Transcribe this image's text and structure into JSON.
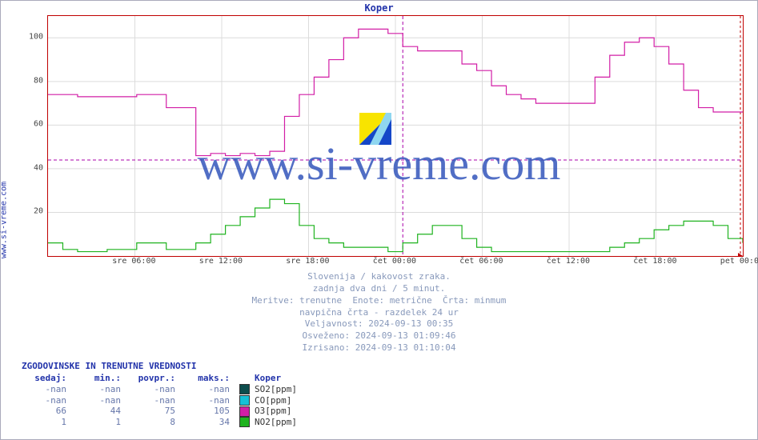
{
  "title": "Koper",
  "side_label": "www.si-vreme.com",
  "watermark": "www.si-vreme.com",
  "chart": {
    "type": "line",
    "background_color": "#ffffff",
    "frame_color": "#c00000",
    "grid_color": "#dcdcdc",
    "ylim": [
      0,
      110
    ],
    "yticks": [
      20,
      40,
      60,
      80,
      100
    ],
    "xticks": [
      "sre 06:00",
      "sre 12:00",
      "sre 18:00",
      "čet 00:00",
      "čet 06:00",
      "čet 12:00",
      "čet 18:00",
      "pet 00:00"
    ],
    "n_points": 48,
    "divider_at": 24,
    "divider_color": "#aa00aa",
    "hline_value": 44,
    "hline_color": "#aa00aa",
    "series": [
      {
        "name": "O3",
        "color": "#d21ea6",
        "line_width": 1.2,
        "data": [
          74,
          74,
          73,
          73,
          73,
          73,
          74,
          74,
          68,
          68,
          46,
          47,
          46,
          47,
          46,
          48,
          64,
          74,
          82,
          90,
          100,
          104,
          104,
          102,
          96,
          94,
          94,
          94,
          88,
          85,
          78,
          74,
          72,
          70,
          70,
          70,
          70,
          82,
          92,
          98,
          100,
          96,
          88,
          76,
          68,
          66,
          66,
          66
        ]
      },
      {
        "name": "NO2",
        "color": "#1fb31f",
        "line_width": 1.2,
        "data": [
          6,
          3,
          2,
          2,
          3,
          3,
          6,
          6,
          3,
          3,
          6,
          10,
          14,
          18,
          22,
          26,
          24,
          14,
          8,
          6,
          4,
          4,
          4,
          2,
          6,
          10,
          14,
          14,
          8,
          4,
          2,
          2,
          2,
          2,
          2,
          2,
          2,
          2,
          4,
          6,
          8,
          12,
          14,
          16,
          16,
          14,
          8,
          6
        ]
      }
    ]
  },
  "metadata_lines": [
    "Slovenija / kakovost zraka.",
    "zadnja dva dni / 5 minut.",
    "Meritve: trenutne  Enote: metrične  Črta: minmum",
    "navpična črta - razdelek 24 ur",
    "Veljavnost: 2024-09-13 00:35",
    "Osveženo: 2024-09-13 01:09:46",
    "Izrisano: 2024-09-13 01:10:04"
  ],
  "table": {
    "title": "ZGODOVINSKE IN TRENUTNE VREDNOSTI",
    "columns": [
      "sedaj:",
      "min.:",
      "povpr.:",
      "maks.:"
    ],
    "legend_header": "Koper",
    "rows": [
      {
        "values": [
          "-nan",
          "-nan",
          "-nan",
          "-nan"
        ],
        "swatch": "#0d4d4d",
        "label": "SO2[ppm]"
      },
      {
        "values": [
          "-nan",
          "-nan",
          "-nan",
          "-nan"
        ],
        "swatch": "#15c0d6",
        "label": "CO[ppm]"
      },
      {
        "values": [
          "66",
          "44",
          "75",
          "105"
        ],
        "swatch": "#d21ea6",
        "label": "O3[ppm]"
      },
      {
        "values": [
          "1",
          "1",
          "8",
          "34"
        ],
        "swatch": "#1fb31f",
        "label": "NO2[ppm]"
      }
    ]
  },
  "colors": {
    "link": "#2233aa",
    "meta_text": "#8899bb",
    "value_text": "#6677aa"
  }
}
